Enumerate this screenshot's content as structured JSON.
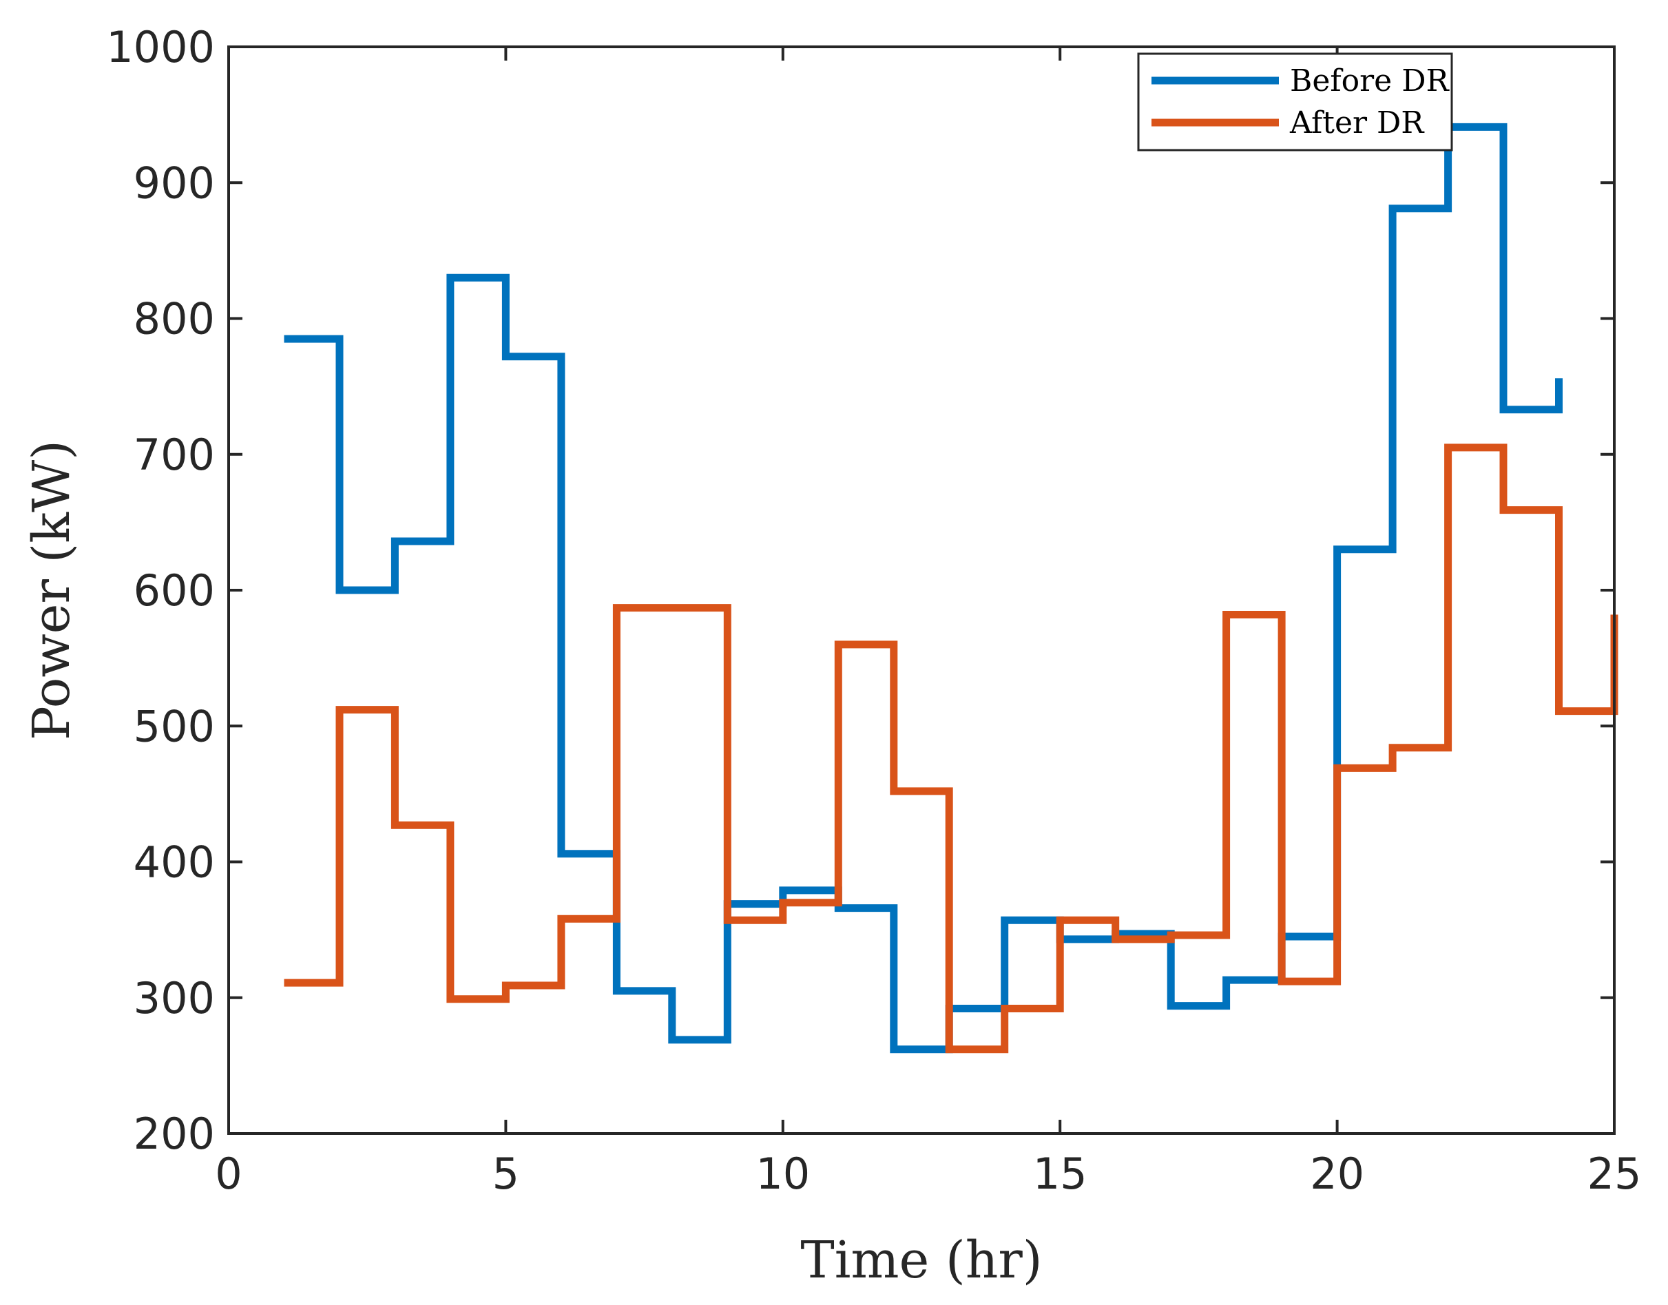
{
  "chart_data": {
    "type": "line",
    "step": "post",
    "title": "",
    "xlabel": "Time (hr)",
    "ylabel": "Power (kW)",
    "xlim": [
      0,
      25
    ],
    "ylim": [
      200,
      1000
    ],
    "xticks": [
      0,
      5,
      10,
      15,
      20,
      25
    ],
    "yticks": [
      200,
      300,
      400,
      500,
      600,
      700,
      800,
      900,
      1000
    ],
    "grid": false,
    "legend_position": "top-right",
    "series": [
      {
        "name": "Before DR",
        "color": "#0072BD",
        "x": [
          1,
          2,
          3,
          4,
          5,
          6,
          7,
          8,
          9,
          10,
          11,
          12,
          13,
          14,
          15,
          16,
          17,
          18,
          19,
          20,
          21,
          22,
          23,
          24
        ],
        "values": [
          785,
          600,
          636,
          830,
          772,
          406,
          305,
          269,
          369,
          379,
          366,
          262,
          292,
          357,
          343,
          347,
          294,
          313,
          345,
          630,
          881,
          941,
          733,
          756
        ]
      },
      {
        "name": "After DR",
        "color": "#D95319",
        "x": [
          1,
          2,
          3,
          4,
          5,
          6,
          7,
          8,
          9,
          10,
          11,
          12,
          13,
          14,
          15,
          16,
          17,
          18,
          19,
          20,
          21,
          22,
          23,
          24,
          25
        ],
        "values": [
          311,
          512,
          427,
          299,
          309,
          358,
          587,
          587,
          357,
          370,
          560,
          452,
          262,
          292,
          357,
          343,
          346,
          582,
          312,
          469,
          484,
          705,
          659,
          511,
          582
        ]
      }
    ]
  }
}
